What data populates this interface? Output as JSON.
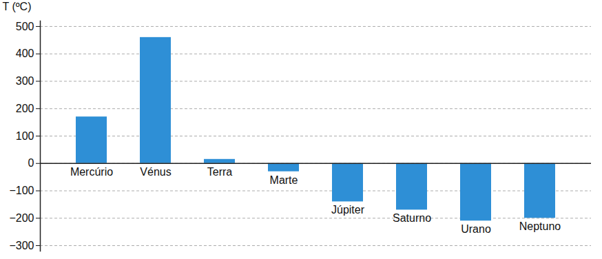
{
  "chart_data": {
    "type": "bar",
    "y_label": "T (ºC)",
    "categories": [
      "Mercúrio",
      "Vénus",
      "Terra",
      "Marte",
      "Júpiter",
      "Saturno",
      "Urano",
      "Neptuno"
    ],
    "values": [
      170,
      460,
      15,
      -30,
      -140,
      -170,
      -210,
      -200
    ],
    "color": "#2e8fd6",
    "ylim": [
      -320,
      520
    ],
    "yticks": [
      -300,
      -200,
      -100,
      0,
      100,
      200,
      300,
      400,
      500
    ],
    "grid": true,
    "tick_labels": "y"
  }
}
